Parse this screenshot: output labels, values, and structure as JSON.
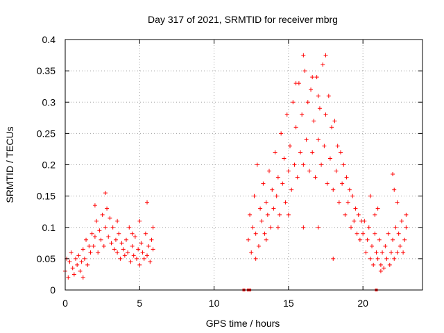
{
  "chart_data": {
    "type": "scatter",
    "title": "Day 317 of 2021, SRMTID for receiver mbrg",
    "xlabel": "GPS time / hours",
    "ylabel": "SRMTID / TECUs",
    "xlim": [
      0,
      24
    ],
    "ylim": [
      0,
      0.4
    ],
    "x_ticks": [
      0,
      5,
      10,
      15,
      20
    ],
    "x_tick_labels": [
      "0",
      "5",
      "10",
      "15",
      "20"
    ],
    "y_ticks": [
      0,
      0.05,
      0.1,
      0.15,
      0.2,
      0.25,
      0.3,
      0.35,
      0.4
    ],
    "y_tick_labels": [
      "0",
      "0.05",
      "0.1",
      "0.15",
      "0.2",
      "0.25",
      "0.3",
      "0.35",
      "0.4"
    ],
    "grid": true,
    "marker": "+",
    "color": "#ff0000",
    "series": [
      {
        "name": "SRMTID",
        "points": [
          [
            0.0,
            0.03
          ],
          [
            0.1,
            0.05
          ],
          [
            0.2,
            0.02
          ],
          [
            0.3,
            0.045
          ],
          [
            0.4,
            0.06
          ],
          [
            0.5,
            0.035
          ],
          [
            0.6,
            0.025
          ],
          [
            0.7,
            0.05
          ],
          [
            0.8,
            0.04
          ],
          [
            0.9,
            0.055
          ],
          [
            1.0,
            0.03
          ],
          [
            1.1,
            0.045
          ],
          [
            1.2,
            0.065
          ],
          [
            1.3,
            0.05
          ],
          [
            1.4,
            0.08
          ],
          [
            1.5,
            0.04
          ],
          [
            1.6,
            0.07
          ],
          [
            1.7,
            0.06
          ],
          [
            1.8,
            0.09
          ],
          [
            1.9,
            0.07
          ],
          [
            2.0,
            0.085
          ],
          [
            2.1,
            0.11
          ],
          [
            2.2,
            0.06
          ],
          [
            2.3,
            0.095
          ],
          [
            2.4,
            0.08
          ],
          [
            2.5,
            0.12
          ],
          [
            2.6,
            0.07
          ],
          [
            2.7,
            0.1
          ],
          [
            2.8,
            0.13
          ],
          [
            2.9,
            0.085
          ],
          [
            3.0,
            0.115
          ],
          [
            3.1,
            0.075
          ],
          [
            3.2,
            0.1
          ],
          [
            3.3,
            0.065
          ],
          [
            3.4,
            0.08
          ],
          [
            3.5,
            0.06
          ],
          [
            3.6,
            0.09
          ],
          [
            3.7,
            0.05
          ],
          [
            3.8,
            0.075
          ],
          [
            3.9,
            0.065
          ],
          [
            4.0,
            0.055
          ],
          [
            4.1,
            0.08
          ],
          [
            4.2,
            0.06
          ],
          [
            4.3,
            0.1
          ],
          [
            4.4,
            0.045
          ],
          [
            4.5,
            0.07
          ],
          [
            4.6,
            0.055
          ],
          [
            4.7,
            0.085
          ],
          [
            4.8,
            0.05
          ],
          [
            4.9,
            0.065
          ],
          [
            5.0,
            0.04
          ],
          [
            5.1,
            0.075
          ],
          [
            5.2,
            0.06
          ],
          [
            5.3,
            0.05
          ],
          [
            5.4,
            0.09
          ],
          [
            5.5,
            0.055
          ],
          [
            5.6,
            0.07
          ],
          [
            5.7,
            0.045
          ],
          [
            5.8,
            0.08
          ],
          [
            5.9,
            0.065
          ],
          [
            1.2,
            0.02
          ],
          [
            2.0,
            0.135
          ],
          [
            2.7,
            0.155
          ],
          [
            3.5,
            0.11
          ],
          [
            4.5,
            0.09
          ],
          [
            5.0,
            0.11
          ],
          [
            5.5,
            0.14
          ],
          [
            5.9,
            0.1
          ],
          [
            12.3,
            0.08
          ],
          [
            12.4,
            0.12
          ],
          [
            12.5,
            0.06
          ],
          [
            12.6,
            0.1
          ],
          [
            12.7,
            0.15
          ],
          [
            12.8,
            0.09
          ],
          [
            12.9,
            0.2
          ],
          [
            13.0,
            0.07
          ],
          [
            13.1,
            0.13
          ],
          [
            13.2,
            0.11
          ],
          [
            13.3,
            0.17
          ],
          [
            13.4,
            0.09
          ],
          [
            13.5,
            0.14
          ],
          [
            13.6,
            0.12
          ],
          [
            13.7,
            0.19
          ],
          [
            13.8,
            0.1
          ],
          [
            13.9,
            0.16
          ],
          [
            14.0,
            0.13
          ],
          [
            14.1,
            0.22
          ],
          [
            14.2,
            0.15
          ],
          [
            14.3,
            0.18
          ],
          [
            14.4,
            0.12
          ],
          [
            14.5,
            0.25
          ],
          [
            14.6,
            0.17
          ],
          [
            14.7,
            0.21
          ],
          [
            14.8,
            0.14
          ],
          [
            14.9,
            0.28
          ],
          [
            15.0,
            0.19
          ],
          [
            15.1,
            0.23
          ],
          [
            15.2,
            0.16
          ],
          [
            15.3,
            0.3
          ],
          [
            15.4,
            0.2
          ],
          [
            15.5,
            0.26
          ],
          [
            15.6,
            0.18
          ],
          [
            15.7,
            0.33
          ],
          [
            15.8,
            0.22
          ],
          [
            15.9,
            0.28
          ],
          [
            16.0,
            0.2
          ],
          [
            16.1,
            0.35
          ],
          [
            16.2,
            0.24
          ],
          [
            16.3,
            0.3
          ],
          [
            16.4,
            0.19
          ],
          [
            16.5,
            0.32
          ],
          [
            16.6,
            0.22
          ],
          [
            16.7,
            0.27
          ],
          [
            16.8,
            0.18
          ],
          [
            16.9,
            0.34
          ],
          [
            17.0,
            0.24
          ],
          [
            17.1,
            0.29
          ],
          [
            17.2,
            0.2
          ],
          [
            17.3,
            0.36
          ],
          [
            17.4,
            0.23
          ],
          [
            17.5,
            0.28
          ],
          [
            17.6,
            0.17
          ],
          [
            17.7,
            0.31
          ],
          [
            17.8,
            0.21
          ],
          [
            17.9,
            0.26
          ],
          [
            18.0,
            0.16
          ],
          [
            18.1,
            0.27
          ],
          [
            18.2,
            0.19
          ],
          [
            18.3,
            0.23
          ],
          [
            18.4,
            0.14
          ],
          [
            18.5,
            0.22
          ],
          [
            18.6,
            0.17
          ],
          [
            18.7,
            0.2
          ],
          [
            18.8,
            0.12
          ],
          [
            18.9,
            0.18
          ],
          [
            19.0,
            0.14
          ],
          [
            19.1,
            0.16
          ],
          [
            19.2,
            0.1
          ],
          [
            19.3,
            0.15
          ],
          [
            19.4,
            0.11
          ],
          [
            19.5,
            0.13
          ],
          [
            19.6,
            0.09
          ],
          [
            19.7,
            0.12
          ],
          [
            19.8,
            0.08
          ],
          [
            19.9,
            0.11
          ],
          [
            16.0,
            0.375
          ],
          [
            17.5,
            0.375
          ],
          [
            15.5,
            0.33
          ],
          [
            17.0,
            0.31
          ],
          [
            16.6,
            0.34
          ],
          [
            14.3,
            0.1
          ],
          [
            15.0,
            0.12
          ],
          [
            16.0,
            0.1
          ],
          [
            17.0,
            0.1
          ],
          [
            18.0,
            0.05
          ],
          [
            13.5,
            0.08
          ],
          [
            12.8,
            0.05
          ],
          [
            20.0,
            0.09
          ],
          [
            20.1,
            0.11
          ],
          [
            20.2,
            0.06
          ],
          [
            20.3,
            0.08
          ],
          [
            20.4,
            0.1
          ],
          [
            20.5,
            0.05
          ],
          [
            20.6,
            0.07
          ],
          [
            20.7,
            0.04
          ],
          [
            20.8,
            0.09
          ],
          [
            20.9,
            0.06
          ],
          [
            21.0,
            0.05
          ],
          [
            21.1,
            0.08
          ],
          [
            21.2,
            0.04
          ],
          [
            21.3,
            0.06
          ],
          [
            21.4,
            0.035
          ],
          [
            21.5,
            0.07
          ],
          [
            21.6,
            0.05
          ],
          [
            21.7,
            0.09
          ],
          [
            21.8,
            0.04
          ],
          [
            21.9,
            0.06
          ],
          [
            22.0,
            0.08
          ],
          [
            22.1,
            0.05
          ],
          [
            22.2,
            0.1
          ],
          [
            22.3,
            0.06
          ],
          [
            22.4,
            0.09
          ],
          [
            22.5,
            0.07
          ],
          [
            22.6,
            0.11
          ],
          [
            22.7,
            0.06
          ],
          [
            22.8,
            0.08
          ],
          [
            22.9,
            0.1
          ],
          [
            20.5,
            0.15
          ],
          [
            21.0,
            0.13
          ],
          [
            22.0,
            0.185
          ],
          [
            22.1,
            0.16
          ],
          [
            22.3,
            0.14
          ],
          [
            22.9,
            0.12
          ],
          [
            21.2,
            0.03
          ],
          [
            20.8,
            0.12
          ]
        ]
      }
    ],
    "zero_markers_x": [
      12.0,
      12.3,
      12.4,
      20.9
    ]
  }
}
